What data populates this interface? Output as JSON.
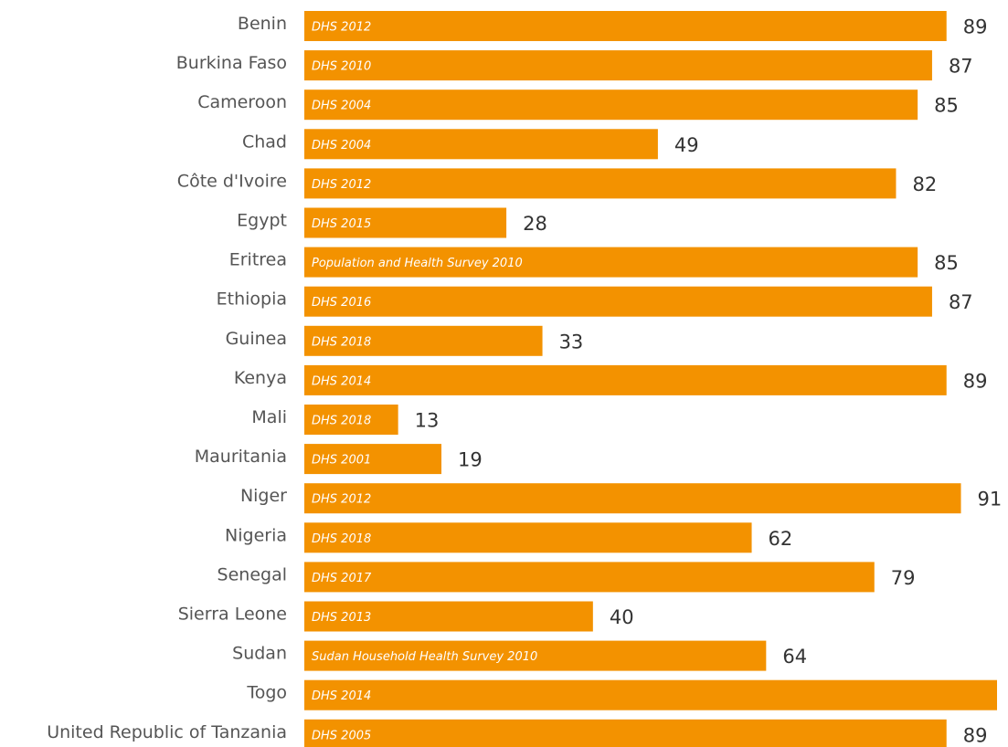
{
  "chart_data": {
    "type": "bar",
    "orientation": "horizontal",
    "bar_color": "#F39200",
    "categories": [
      "Benin",
      "Burkina Faso",
      "Cameroon",
      "Chad",
      "Côte d'Ivoire",
      "Egypt",
      "Eritrea",
      "Ethiopia",
      "Guinea",
      "Kenya",
      "Mali",
      "Mauritania",
      "Niger",
      "Nigeria",
      "Senegal",
      "Sierra Leone",
      "Sudan",
      "Togo",
      "United Republic of Tanzania"
    ],
    "sources": [
      "DHS 2012",
      "DHS 2010",
      "DHS 2004",
      "DHS 2004",
      "DHS 2012",
      "DHS 2015",
      "Population and Health Survey 2010",
      "DHS 2016",
      "DHS 2018",
      "DHS 2014",
      "DHS 2018",
      "DHS 2001",
      "DHS 2012",
      "DHS 2018",
      "DHS 2017",
      "DHS 2013",
      "Sudan Household Health Survey 2010",
      "DHS 2014",
      "DHS 2005"
    ],
    "values": [
      89,
      87,
      85,
      49,
      82,
      28,
      85,
      87,
      33,
      89,
      13,
      19,
      91,
      62,
      79,
      40,
      64,
      96,
      89
    ],
    "xlim": [
      0,
      96
    ],
    "grid": false,
    "legend": "none"
  }
}
